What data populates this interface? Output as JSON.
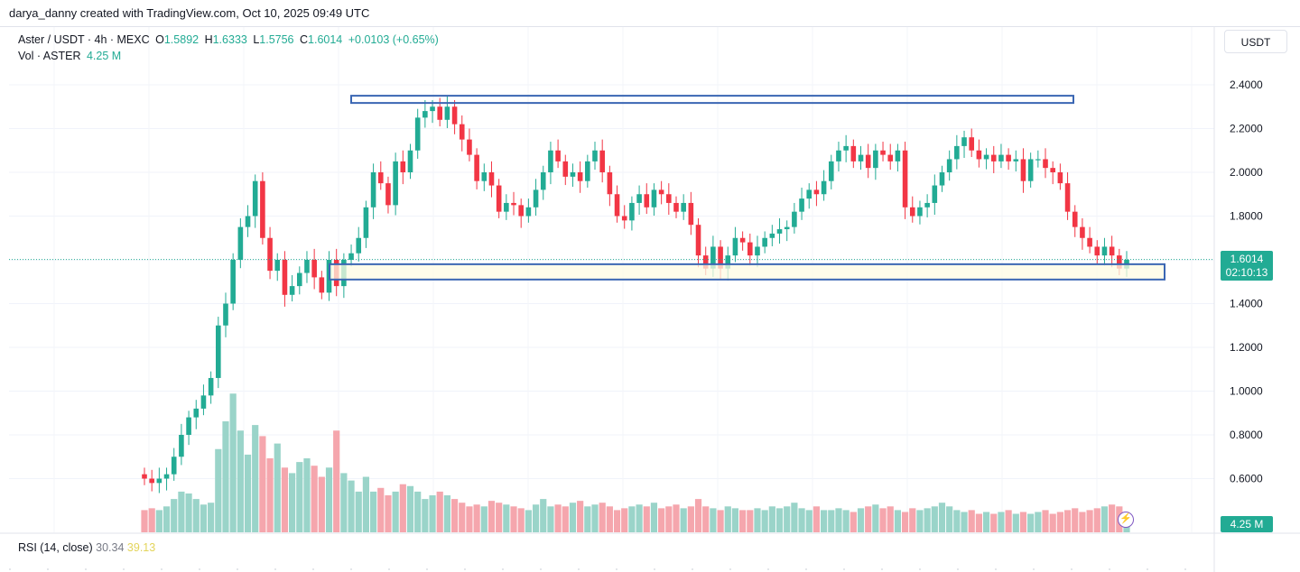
{
  "header": {
    "credit": "darya_danny created with TradingView.com, Oct 10, 2025 09:49 UTC"
  },
  "legend": {
    "symbol": "Aster / USDT · 4h · MEXC",
    "o_label": "O",
    "o_value": "1.5892",
    "h_label": "H",
    "h_value": "1.6333",
    "l_label": "L",
    "l_value": "1.5756",
    "c_label": "C",
    "c_value": "1.6014",
    "change": "+0.0103 (+0.65%)",
    "vol_label": "Vol · ASTER",
    "vol_value": "4.25 M"
  },
  "axis": {
    "currency": "USDT"
  },
  "last_price": {
    "value": "1.6014",
    "countdown": "02:10:13"
  },
  "volume_tag": "4.25 M",
  "rsi": {
    "label": "RSI (14, close)",
    "value1": "30.34",
    "value2": "39.13"
  },
  "colors": {
    "up": "#22ab94",
    "down": "#f23645",
    "up_vol": "#9ad4c9",
    "down_vol": "#f5a6ad",
    "box": "#3a66b3",
    "zone_fill": "#fdfbe3"
  },
  "chart_data": {
    "type": "candlestick",
    "timeframe": "4h",
    "y_ticks": [
      "2.4000",
      "2.2000",
      "2.0000",
      "1.8000",
      "1.6000",
      "1.4000",
      "1.2000",
      "1.0000",
      "0.8000",
      "0.6000"
    ],
    "ylim": [
      0.55,
      2.45
    ],
    "resistance_zone": [
      2.32,
      2.35
    ],
    "support_zone": [
      1.51,
      1.58
    ],
    "closes": [
      0.6,
      0.58,
      0.6,
      0.62,
      0.7,
      0.8,
      0.88,
      0.92,
      0.98,
      1.06,
      1.3,
      1.4,
      1.6,
      1.75,
      1.8,
      1.96,
      1.7,
      1.55,
      1.6,
      1.44,
      1.48,
      1.54,
      1.6,
      1.52,
      1.45,
      1.6,
      1.48,
      1.6,
      1.63,
      1.7,
      1.84,
      2.0,
      1.95,
      1.85,
      2.05,
      2.0,
      2.1,
      2.25,
      2.28,
      2.3,
      2.24,
      2.3,
      2.22,
      2.15,
      2.08,
      1.96,
      2.0,
      1.94,
      1.82,
      1.86,
      1.85,
      1.8,
      1.84,
      1.92,
      2.0,
      2.1,
      2.05,
      1.98,
      2.0,
      1.96,
      2.05,
      2.1,
      2.0,
      1.9,
      1.8,
      1.78,
      1.86,
      1.9,
      1.84,
      1.92,
      1.9,
      1.86,
      1.82,
      1.86,
      1.76,
      1.62,
      1.56,
      1.66,
      1.56,
      1.62,
      1.7,
      1.68,
      1.62,
      1.66,
      1.7,
      1.72,
      1.74,
      1.75,
      1.82,
      1.88,
      1.92,
      1.9,
      1.96,
      2.05,
      2.1,
      2.12,
      2.05,
      2.08,
      2.02,
      2.1,
      2.08,
      2.05,
      2.1,
      1.84,
      1.8,
      1.84,
      1.86,
      1.94,
      2.0,
      2.06,
      2.12,
      2.16,
      2.1,
      2.06,
      2.08,
      2.05,
      2.08,
      2.05,
      2.06,
      1.96,
      2.06,
      2.06,
      2.02,
      2.0,
      1.95,
      1.82,
      1.75,
      1.7,
      1.66,
      1.62,
      1.66,
      1.62,
      1.56,
      1.6
    ],
    "volume": [
      0.12,
      0.13,
      0.12,
      0.14,
      0.18,
      0.22,
      0.21,
      0.18,
      0.15,
      0.16,
      0.45,
      0.6,
      0.75,
      0.55,
      0.42,
      0.58,
      0.52,
      0.4,
      0.48,
      0.35,
      0.32,
      0.38,
      0.4,
      0.36,
      0.3,
      0.35,
      0.55,
      0.32,
      0.28,
      0.22,
      0.3,
      0.22,
      0.24,
      0.2,
      0.22,
      0.26,
      0.25,
      0.22,
      0.18,
      0.2,
      0.22,
      0.2,
      0.18,
      0.16,
      0.14,
      0.15,
      0.14,
      0.17,
      0.16,
      0.15,
      0.14,
      0.13,
      0.12,
      0.15,
      0.18,
      0.14,
      0.15,
      0.14,
      0.16,
      0.17,
      0.14,
      0.15,
      0.16,
      0.14,
      0.12,
      0.13,
      0.14,
      0.15,
      0.14,
      0.16,
      0.13,
      0.14,
      0.15,
      0.13,
      0.14,
      0.18,
      0.14,
      0.13,
      0.12,
      0.14,
      0.13,
      0.12,
      0.12,
      0.13,
      0.12,
      0.14,
      0.13,
      0.14,
      0.16,
      0.13,
      0.12,
      0.14,
      0.12,
      0.12,
      0.13,
      0.12,
      0.11,
      0.13,
      0.14,
      0.15,
      0.13,
      0.14,
      0.12,
      0.11,
      0.13,
      0.12,
      0.13,
      0.14,
      0.16,
      0.14,
      0.12,
      0.11,
      0.12,
      0.1,
      0.11,
      0.1,
      0.11,
      0.12,
      0.1,
      0.11,
      0.1,
      0.11,
      0.12,
      0.1,
      0.11,
      0.12,
      0.13,
      0.11,
      0.12,
      0.13,
      0.14,
      0.15,
      0.14,
      0.1
    ]
  }
}
